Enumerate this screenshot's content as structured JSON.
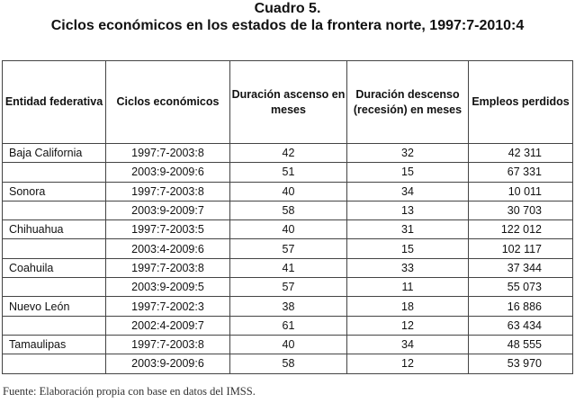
{
  "title_line1": "Cuadro 5.",
  "title_line2": "Ciclos económicos en los estados de la frontera norte, 1997:7-2010:4",
  "table": {
    "headers": {
      "entidad": "Entidad federativa",
      "ciclos": "Ciclos económicos",
      "ascenso": "Duración ascenso en meses",
      "descenso": "Duración descenso (recesión) en meses",
      "empleos": "Empleos perdidos"
    },
    "rows": [
      {
        "entidad": "Baja California",
        "ciclo": "1997:7-2003:8",
        "ascenso": "42",
        "descenso": "32",
        "empleos": "42 311"
      },
      {
        "entidad": "",
        "ciclo": "2003:9-2009:6",
        "ascenso": "51",
        "descenso": "15",
        "empleos": "67 331"
      },
      {
        "entidad": "Sonora",
        "ciclo": "1997:7-2003:8",
        "ascenso": "40",
        "descenso": "34",
        "empleos": "10 011"
      },
      {
        "entidad": "",
        "ciclo": "2003:9-2009:7",
        "ascenso": "58",
        "descenso": "13",
        "empleos": "30 703"
      },
      {
        "entidad": "Chihuahua",
        "ciclo": "1997:7-2003:5",
        "ascenso": "40",
        "descenso": "31",
        "empleos": "122 012"
      },
      {
        "entidad": "",
        "ciclo": "2003:4-2009:6",
        "ascenso": "57",
        "descenso": "15",
        "empleos": "102 117"
      },
      {
        "entidad": "Coahuila",
        "ciclo": "1997:7-2003:8",
        "ascenso": "41",
        "descenso": "33",
        "empleos": "37 344"
      },
      {
        "entidad": "",
        "ciclo": "2003:9-2009:5",
        "ascenso": "57",
        "descenso": "11",
        "empleos": "55 073"
      },
      {
        "entidad": "Nuevo León",
        "ciclo": "1997:7-2002:3",
        "ascenso": "38",
        "descenso": "18",
        "empleos": "16 886"
      },
      {
        "entidad": "",
        "ciclo": "2002:4-2009:7",
        "ascenso": "61",
        "descenso": "12",
        "empleos": "63 434"
      },
      {
        "entidad": "Tamaulipas",
        "ciclo": "1997:7-2003:8",
        "ascenso": "40",
        "descenso": "34",
        "empleos": "48 555"
      },
      {
        "entidad": "",
        "ciclo": "2003:9-2009:6",
        "ascenso": "58",
        "descenso": "12",
        "empleos": "53 970"
      }
    ]
  },
  "footnote": "Fuente: Elaboración propia con base en datos del IMSS."
}
